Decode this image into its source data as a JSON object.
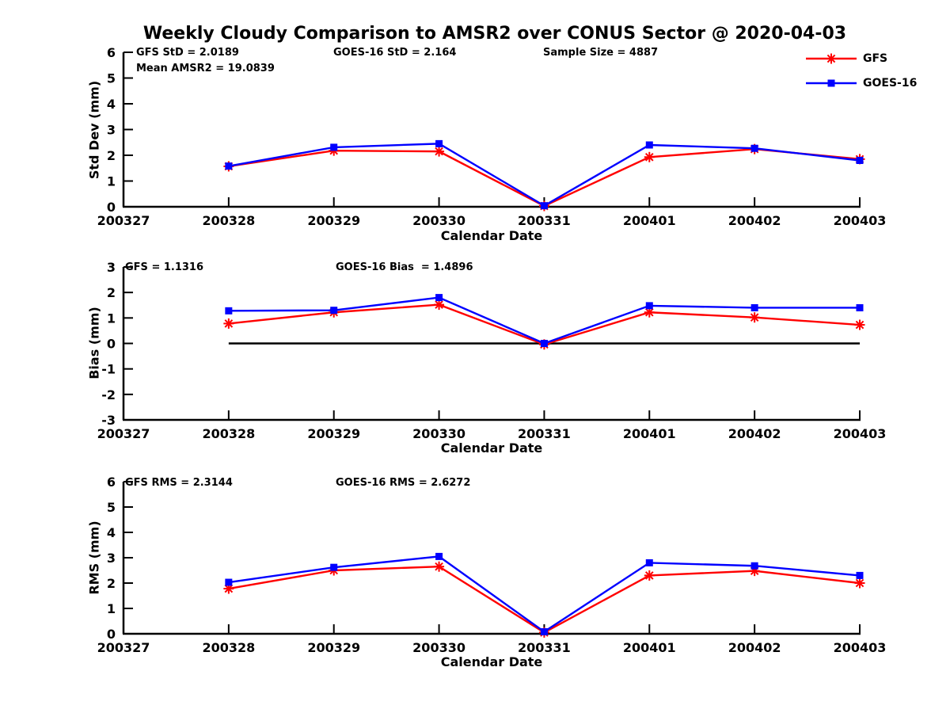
{
  "title": "Weekly Cloudy Comparison to AMSR2 over CONUS Sector @ 2020-04-03",
  "colors": {
    "gfs": "#ff0000",
    "goes16": "#0000ff",
    "axis": "#000000",
    "background": "#ffffff"
  },
  "legend": {
    "position": "top-right",
    "items": [
      {
        "label": "GFS",
        "color": "#ff0000",
        "marker": "asterisk"
      },
      {
        "label": "GOES-16",
        "color": "#0000ff",
        "marker": "square"
      }
    ]
  },
  "chart_data": [
    {
      "type": "line",
      "title": "",
      "ylabel": "Std Dev (mm)",
      "xlabel": "Calendar Date",
      "ylim": [
        0,
        6
      ],
      "yticks": [
        0,
        1,
        2,
        3,
        4,
        5,
        6
      ],
      "categories": [
        "200327",
        "200328",
        "200329",
        "200330",
        "200331",
        "200401",
        "200402",
        "200403"
      ],
      "grid": false,
      "zero_line": false,
      "annotations": [
        {
          "text": "GFS StD = 2.0189"
        },
        {
          "text": "Mean AMSR2 = 19.0839"
        },
        {
          "text": "GOES-16 StD = 2.164"
        },
        {
          "text": "Sample Size = 4887"
        }
      ],
      "series": [
        {
          "name": "GFS",
          "color": "#ff0000",
          "marker": "asterisk",
          "x": [
            "200328",
            "200329",
            "200330",
            "200331",
            "200401",
            "200402",
            "200403"
          ],
          "values": [
            1.57,
            2.18,
            2.15,
            0.03,
            1.93,
            2.24,
            1.85
          ]
        },
        {
          "name": "GOES-16",
          "color": "#0000ff",
          "marker": "square",
          "x": [
            "200328",
            "200329",
            "200330",
            "200331",
            "200401",
            "200402",
            "200403"
          ],
          "values": [
            1.58,
            2.31,
            2.45,
            0.04,
            2.4,
            2.27,
            1.8
          ]
        }
      ]
    },
    {
      "type": "line",
      "title": "",
      "ylabel": "Bias (mm)",
      "xlabel": "Calendar Date",
      "ylim": [
        -3,
        3
      ],
      "yticks": [
        -3,
        -2,
        -1,
        0,
        1,
        2,
        3
      ],
      "categories": [
        "200327",
        "200328",
        "200329",
        "200330",
        "200331",
        "200401",
        "200402",
        "200403"
      ],
      "grid": false,
      "zero_line": true,
      "annotations": [
        {
          "text": "GFS = 1.1316"
        },
        {
          "text": "GOES-16 Bias  = 1.4896"
        }
      ],
      "series": [
        {
          "name": "GFS",
          "color": "#ff0000",
          "marker": "asterisk",
          "x": [
            "200328",
            "200329",
            "200330",
            "200331",
            "200401",
            "200402",
            "200403"
          ],
          "values": [
            0.78,
            1.22,
            1.52,
            -0.04,
            1.22,
            1.02,
            0.73
          ]
        },
        {
          "name": "GOES-16",
          "color": "#0000ff",
          "marker": "square",
          "x": [
            "200328",
            "200329",
            "200330",
            "200331",
            "200401",
            "200402",
            "200403"
          ],
          "values": [
            1.28,
            1.3,
            1.8,
            0.0,
            1.48,
            1.4,
            1.4
          ]
        }
      ]
    },
    {
      "type": "line",
      "title": "",
      "ylabel": "RMS (mm)",
      "xlabel": "Calendar Date",
      "ylim": [
        0,
        6
      ],
      "yticks": [
        0,
        1,
        2,
        3,
        4,
        5,
        6
      ],
      "categories": [
        "200327",
        "200328",
        "200329",
        "200330",
        "200331",
        "200401",
        "200402",
        "200403"
      ],
      "grid": false,
      "zero_line": false,
      "annotations": [
        {
          "text": "GFS RMS = 2.3144"
        },
        {
          "text": "GOES-16 RMS = 2.6272"
        }
      ],
      "series": [
        {
          "name": "GFS",
          "color": "#ff0000",
          "marker": "asterisk",
          "x": [
            "200328",
            "200329",
            "200330",
            "200331",
            "200401",
            "200402",
            "200403"
          ],
          "values": [
            1.78,
            2.5,
            2.65,
            0.05,
            2.3,
            2.48,
            2.0
          ]
        },
        {
          "name": "GOES-16",
          "color": "#0000ff",
          "marker": "square",
          "x": [
            "200328",
            "200329",
            "200330",
            "200331",
            "200401",
            "200402",
            "200403"
          ],
          "values": [
            2.03,
            2.62,
            3.05,
            0.08,
            2.8,
            2.68,
            2.3
          ]
        }
      ]
    }
  ]
}
